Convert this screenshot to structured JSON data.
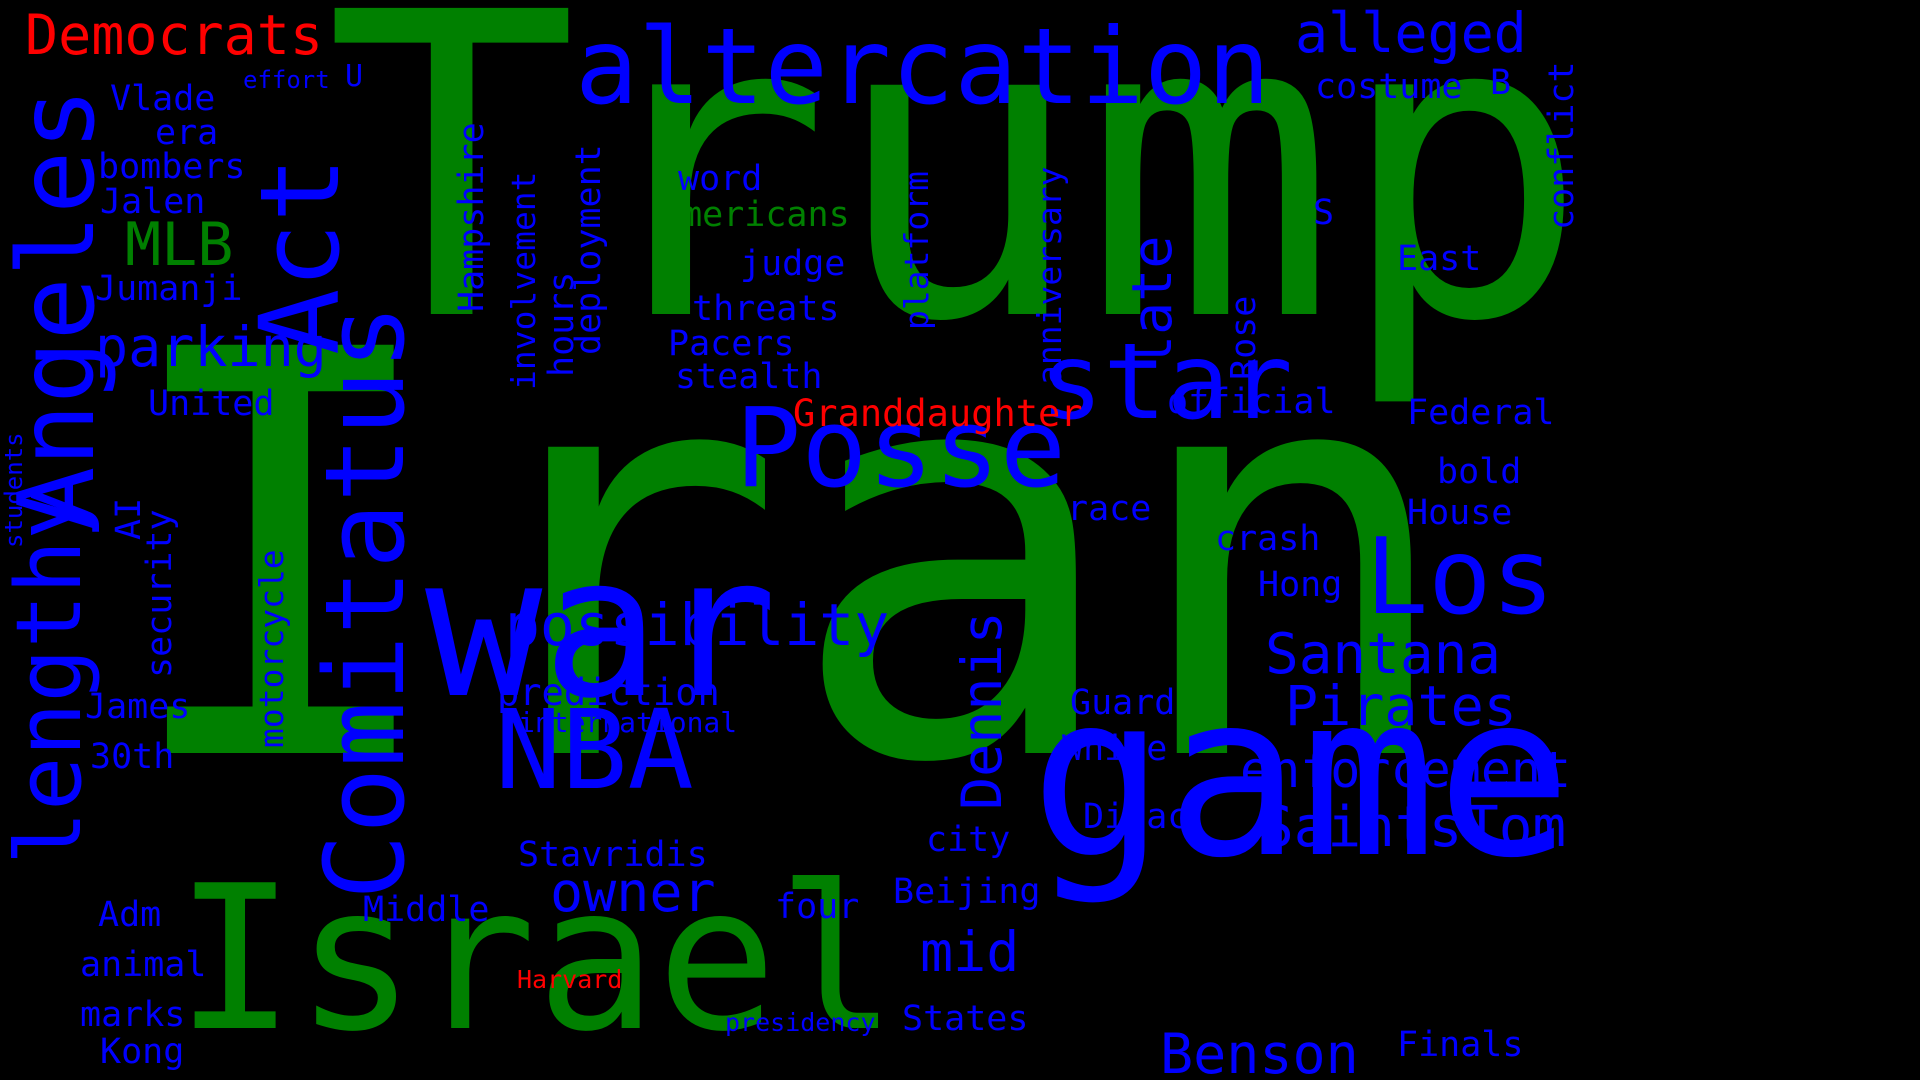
{
  "palette": {
    "background": "#000000",
    "green": "#008000",
    "blue": "#0000ff",
    "red": "#ff0000"
  },
  "words": {
    "iran": "Iran",
    "trump": "Trump",
    "game": "game",
    "israel": "Israel",
    "war": "war",
    "altercation": "altercation",
    "act": "Act",
    "posse": "Posse",
    "star": "star",
    "comitatus": "Comitatus",
    "angeles": "Angeles",
    "lengthy": "lengthy",
    "los": "Los",
    "nba": "NBA",
    "possibility": "possibility",
    "parking": "parking",
    "democrats": "Democrats",
    "alleged": "alleged",
    "santana": "Santana",
    "pirates": "Pirates",
    "enforcement": "enforcement",
    "saints": "Saints",
    "tom": "Tom",
    "benson": "Benson",
    "mlb": "MLB",
    "dennis": "Dennis",
    "owner": "owner",
    "mid": "mid",
    "late": "late",
    "granddaughter": "Granddaughter",
    "costume": "costume",
    "b": "B",
    "conflict": "conflict",
    "vlade": "Vlade",
    "era": "era",
    "bombers": "bombers",
    "jalen": "Jalen",
    "jumanji": "Jumanji",
    "united": "United",
    "effort": "effort",
    "u": "U",
    "word": "word",
    "americans": "Americans",
    "judge": "judge",
    "threats": "threats",
    "pacers": "Pacers",
    "stealth": "stealth",
    "hampshire": "Hampshire",
    "involvement": "involvement",
    "deployment": "deployment",
    "hours": "hours",
    "platform": "platform",
    "anniversary": "anniversary",
    "rose": "Rose",
    "s": "S",
    "east": "East",
    "official": "official",
    "federal": "Federal",
    "bold": "bold",
    "house": "House",
    "race": "race",
    "crash": "crash",
    "hong": "Hong",
    "students": "students",
    "ai": "AI",
    "security": "security",
    "motorcycle": "motorcycle",
    "james": "James",
    "thirtieth": "30th",
    "prediction": "prediction",
    "international": "international",
    "guard": "Guard",
    "white": "White",
    "divac": "Divac",
    "stavridis": "Stavridis",
    "city": "city",
    "adm": "Adm",
    "middle": "Middle",
    "four": "four",
    "beijing": "Beijing",
    "animal": "animal",
    "harvard": "Harvard",
    "marks": "marks",
    "presidency": "presidency",
    "states": "States",
    "kong": "Kong",
    "finals": "Finals"
  }
}
